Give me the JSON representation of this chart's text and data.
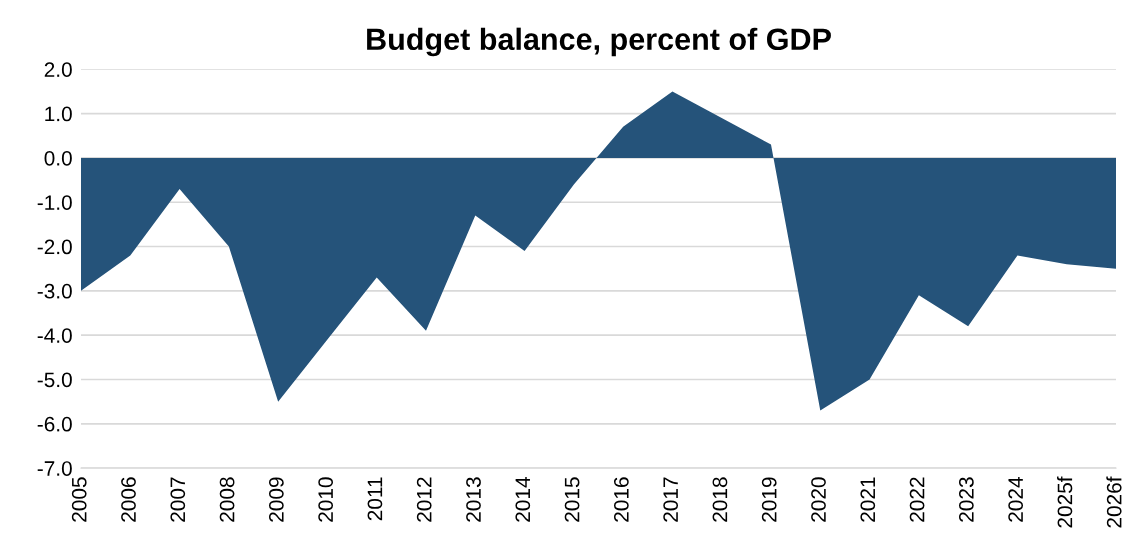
{
  "chart_data": {
    "type": "area",
    "title": "Budget balance, percent of GDP",
    "categories": [
      "2005",
      "2006",
      "2007",
      "2008",
      "2009",
      "2010",
      "2011",
      "2012",
      "2013",
      "2014",
      "2015",
      "2016",
      "2017",
      "2018",
      "2019",
      "2020",
      "2021",
      "2022",
      "2023",
      "2024",
      "2025f",
      "2026f"
    ],
    "series": [
      {
        "color": "#25537a",
        "values": [
          -3.0,
          -2.2,
          -0.7,
          -2.0,
          -5.5,
          -4.1,
          -2.7,
          -3.9,
          -1.3,
          -2.1,
          -0.6,
          0.7,
          1.5,
          0.9,
          0.3,
          -5.7,
          -5.0,
          -3.1,
          -3.8,
          -2.2,
          -2.4,
          -2.5
        ]
      }
    ],
    "ylim": [
      -7.0,
      2.0
    ],
    "yticks": [
      {
        "value": 2.0,
        "label": "2.0"
      },
      {
        "value": 1.0,
        "label": "1.0"
      },
      {
        "value": 0.0,
        "label": "0.0"
      },
      {
        "value": -1.0,
        "label": "-1.0"
      },
      {
        "value": -2.0,
        "label": "-2.0"
      },
      {
        "value": -3.0,
        "label": "-3.0"
      },
      {
        "value": -4.0,
        "label": "-4.0"
      },
      {
        "value": -5.0,
        "label": "-5.0"
      },
      {
        "value": -6.0,
        "label": "-6.0"
      },
      {
        "value": -7.0,
        "label": "-7.0"
      }
    ],
    "grid": "y"
  }
}
